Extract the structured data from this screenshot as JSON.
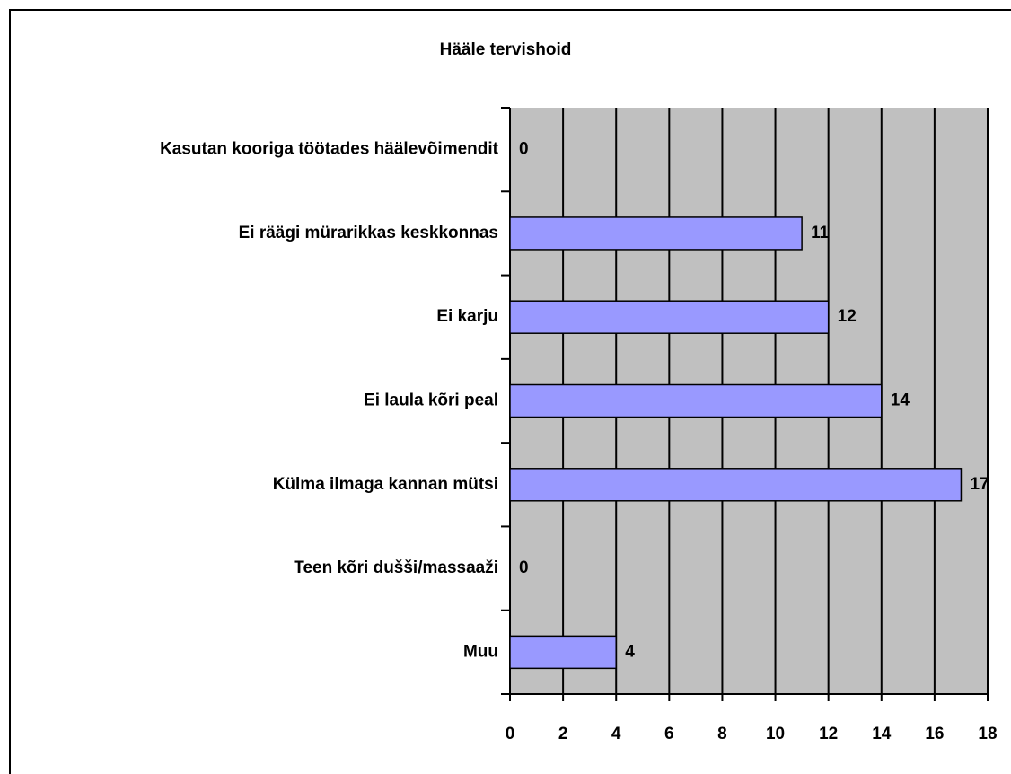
{
  "chart_data": {
    "type": "bar",
    "orientation": "horizontal",
    "title": "Hääle tervishoid",
    "categories": [
      "Kasutan kooriga töötades häälevõimendit",
      "Ei räägi mürarikkas keskkonnas",
      "Ei karju",
      "Ei laula kõri peal",
      "Külma ilmaga kannan mütsi",
      "Teen kõri dušši/massaaži",
      "Muu"
    ],
    "values": [
      0,
      11,
      12,
      14,
      17,
      0,
      4
    ],
    "color": "#9999ff",
    "xlim": [
      0,
      18
    ],
    "xticks": [
      0,
      2,
      4,
      6,
      8,
      10,
      12,
      14,
      16,
      18
    ],
    "grid": true
  }
}
